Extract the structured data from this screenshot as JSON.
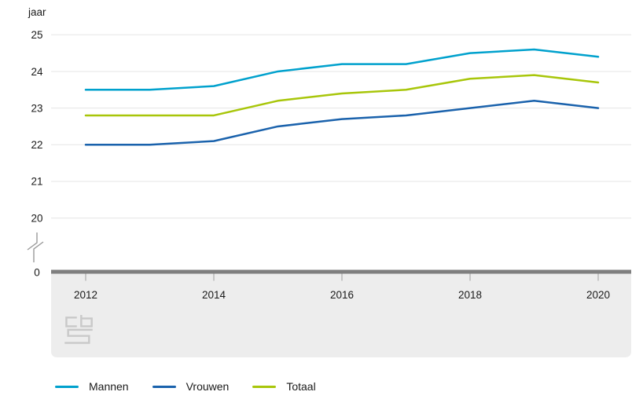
{
  "chart_data": {
    "type": "line",
    "title": "",
    "ylabel": "jaar",
    "x": [
      2012,
      2013,
      2014,
      2015,
      2016,
      2017,
      2018,
      2019,
      2020
    ],
    "series": [
      {
        "name": "Mannen",
        "color": "#00a1cd",
        "values": [
          23.5,
          23.5,
          23.6,
          24.0,
          24.2,
          24.2,
          24.5,
          24.6,
          24.4
        ]
      },
      {
        "name": "Vrouwen",
        "color": "#1a62ac",
        "values": [
          22.0,
          22.0,
          22.1,
          22.5,
          22.7,
          22.8,
          23.0,
          23.2,
          23.0
        ]
      },
      {
        "name": "Totaal",
        "color": "#a8c60a",
        "values": [
          22.8,
          22.8,
          22.8,
          23.2,
          23.4,
          23.5,
          23.8,
          23.9,
          23.7
        ]
      }
    ],
    "y_ticks": [
      "25",
      "24",
      "23",
      "22",
      "21",
      "20"
    ],
    "y_zero_label": "0",
    "axis_break": true,
    "x_tick_labels": [
      "2012",
      "2014",
      "2016",
      "2018",
      "2020"
    ],
    "ylim": [
      0,
      25
    ],
    "visible_value_range": [
      20,
      25
    ],
    "grid": "horizontal",
    "legend_position": "bottom"
  },
  "colors": {
    "grid": "#e5e5e5",
    "axis_bar": "#7f7f7f",
    "band": "#ededed",
    "tick_mark": "#b9b9b9",
    "text": "#1a1a1a",
    "logo": "#c9c9c9",
    "break_symbol": "#999999"
  }
}
